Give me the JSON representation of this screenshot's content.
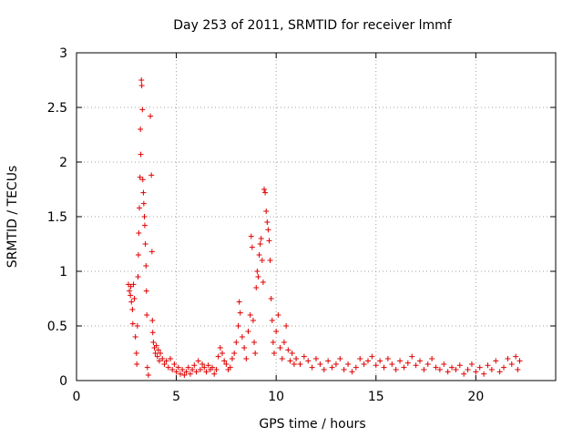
{
  "chart_data": {
    "type": "scatter",
    "title": "Day 253 of 2011, SRMTID for receiver lmmf",
    "xlabel": "GPS time / hours",
    "ylabel": "SRMTID / TECUs",
    "xlim": [
      0,
      24
    ],
    "ylim": [
      0,
      3
    ],
    "xticks": [
      0,
      5,
      10,
      15,
      20
    ],
    "xtick_labels": [
      "0",
      "5",
      "10",
      "15",
      "20"
    ],
    "yticks": [
      0,
      0.5,
      1,
      1.5,
      2,
      2.5,
      3
    ],
    "ytick_labels": [
      "0",
      "0.5",
      "1",
      "1.5",
      "2",
      "2.5",
      "3"
    ],
    "grid": true,
    "marker": "+",
    "color": "#e00000",
    "series": [
      {
        "name": "SRMTID",
        "points": [
          [
            2.6,
            0.88
          ],
          [
            2.65,
            0.82
          ],
          [
            2.7,
            0.78
          ],
          [
            2.72,
            0.86
          ],
          [
            2.75,
            0.72
          ],
          [
            2.8,
            0.65
          ],
          [
            2.82,
            0.52
          ],
          [
            2.85,
            0.88
          ],
          [
            2.9,
            0.75
          ],
          [
            2.95,
            0.4
          ],
          [
            3.0,
            0.25
          ],
          [
            3.02,
            0.15
          ],
          [
            3.05,
            0.5
          ],
          [
            3.08,
            0.95
          ],
          [
            3.1,
            1.15
          ],
          [
            3.12,
            1.35
          ],
          [
            3.15,
            1.58
          ],
          [
            3.18,
            1.86
          ],
          [
            3.2,
            2.3
          ],
          [
            3.22,
            2.07
          ],
          [
            3.25,
            2.75
          ],
          [
            3.27,
            2.7
          ],
          [
            3.3,
            2.48
          ],
          [
            3.32,
            1.84
          ],
          [
            3.35,
            1.72
          ],
          [
            3.37,
            1.62
          ],
          [
            3.4,
            1.5
          ],
          [
            3.42,
            1.42
          ],
          [
            3.45,
            1.25
          ],
          [
            3.48,
            1.05
          ],
          [
            3.5,
            0.82
          ],
          [
            3.52,
            0.6
          ],
          [
            3.55,
            0.12
          ],
          [
            3.6,
            0.05
          ],
          [
            3.7,
            2.42
          ],
          [
            3.75,
            1.88
          ],
          [
            3.78,
            1.18
          ],
          [
            3.8,
            0.55
          ],
          [
            3.82,
            0.44
          ],
          [
            3.85,
            0.35
          ],
          [
            3.9,
            0.3
          ],
          [
            3.95,
            0.25
          ],
          [
            4.0,
            0.32
          ],
          [
            4.05,
            0.22
          ],
          [
            4.1,
            0.28
          ],
          [
            4.15,
            0.18
          ],
          [
            4.2,
            0.25
          ],
          [
            4.3,
            0.2
          ],
          [
            4.4,
            0.15
          ],
          [
            4.5,
            0.18
          ],
          [
            4.6,
            0.12
          ],
          [
            4.7,
            0.2
          ],
          [
            4.8,
            0.1
          ],
          [
            4.9,
            0.15
          ],
          [
            5.0,
            0.08
          ],
          [
            5.1,
            0.12
          ],
          [
            5.2,
            0.06
          ],
          [
            5.3,
            0.1
          ],
          [
            5.4,
            0.05
          ],
          [
            5.5,
            0.08
          ],
          [
            5.6,
            0.12
          ],
          [
            5.7,
            0.06
          ],
          [
            5.8,
            0.1
          ],
          [
            5.9,
            0.14
          ],
          [
            6.0,
            0.08
          ],
          [
            6.1,
            0.18
          ],
          [
            6.2,
            0.1
          ],
          [
            6.3,
            0.15
          ],
          [
            6.4,
            0.12
          ],
          [
            6.5,
            0.08
          ],
          [
            6.6,
            0.14
          ],
          [
            6.7,
            0.1
          ],
          [
            6.8,
            0.12
          ],
          [
            6.9,
            0.06
          ],
          [
            7.0,
            0.1
          ],
          [
            7.1,
            0.22
          ],
          [
            7.2,
            0.3
          ],
          [
            7.3,
            0.25
          ],
          [
            7.4,
            0.18
          ],
          [
            7.5,
            0.15
          ],
          [
            7.6,
            0.1
          ],
          [
            7.7,
            0.12
          ],
          [
            7.8,
            0.2
          ],
          [
            7.9,
            0.25
          ],
          [
            8.0,
            0.35
          ],
          [
            8.1,
            0.5
          ],
          [
            8.15,
            0.72
          ],
          [
            8.2,
            0.62
          ],
          [
            8.3,
            0.4
          ],
          [
            8.4,
            0.3
          ],
          [
            8.5,
            0.2
          ],
          [
            8.6,
            0.45
          ],
          [
            8.7,
            0.6
          ],
          [
            8.75,
            1.32
          ],
          [
            8.8,
            1.22
          ],
          [
            8.85,
            0.55
          ],
          [
            8.9,
            0.35
          ],
          [
            8.95,
            0.25
          ],
          [
            9.0,
            0.85
          ],
          [
            9.05,
            1.0
          ],
          [
            9.1,
            0.95
          ],
          [
            9.15,
            1.15
          ],
          [
            9.2,
            1.25
          ],
          [
            9.25,
            1.3
          ],
          [
            9.3,
            1.1
          ],
          [
            9.35,
            0.9
          ],
          [
            9.4,
            1.75
          ],
          [
            9.45,
            1.72
          ],
          [
            9.5,
            1.55
          ],
          [
            9.55,
            1.45
          ],
          [
            9.6,
            1.38
          ],
          [
            9.65,
            1.28
          ],
          [
            9.7,
            1.1
          ],
          [
            9.75,
            0.75
          ],
          [
            9.8,
            0.55
          ],
          [
            9.85,
            0.35
          ],
          [
            9.9,
            0.25
          ],
          [
            10.0,
            0.45
          ],
          [
            10.1,
            0.6
          ],
          [
            10.2,
            0.3
          ],
          [
            10.3,
            0.2
          ],
          [
            10.4,
            0.35
          ],
          [
            10.5,
            0.5
          ],
          [
            10.6,
            0.28
          ],
          [
            10.7,
            0.18
          ],
          [
            10.8,
            0.25
          ],
          [
            10.9,
            0.15
          ],
          [
            11.0,
            0.2
          ],
          [
            11.2,
            0.15
          ],
          [
            11.4,
            0.22
          ],
          [
            11.6,
            0.18
          ],
          [
            11.8,
            0.12
          ],
          [
            12.0,
            0.2
          ],
          [
            12.2,
            0.15
          ],
          [
            12.4,
            0.1
          ],
          [
            12.6,
            0.18
          ],
          [
            12.8,
            0.12
          ],
          [
            13.0,
            0.15
          ],
          [
            13.2,
            0.2
          ],
          [
            13.4,
            0.1
          ],
          [
            13.6,
            0.15
          ],
          [
            13.8,
            0.08
          ],
          [
            14.0,
            0.12
          ],
          [
            14.2,
            0.2
          ],
          [
            14.4,
            0.15
          ],
          [
            14.6,
            0.18
          ],
          [
            14.8,
            0.22
          ],
          [
            15.0,
            0.14
          ],
          [
            15.2,
            0.18
          ],
          [
            15.4,
            0.12
          ],
          [
            15.6,
            0.2
          ],
          [
            15.8,
            0.15
          ],
          [
            16.0,
            0.1
          ],
          [
            16.2,
            0.18
          ],
          [
            16.4,
            0.12
          ],
          [
            16.6,
            0.16
          ],
          [
            16.8,
            0.22
          ],
          [
            17.0,
            0.14
          ],
          [
            17.2,
            0.18
          ],
          [
            17.4,
            0.1
          ],
          [
            17.6,
            0.15
          ],
          [
            17.8,
            0.2
          ],
          [
            18.0,
            0.12
          ],
          [
            18.2,
            0.1
          ],
          [
            18.4,
            0.15
          ],
          [
            18.6,
            0.08
          ],
          [
            18.8,
            0.12
          ],
          [
            19.0,
            0.1
          ],
          [
            19.2,
            0.14
          ],
          [
            19.4,
            0.06
          ],
          [
            19.6,
            0.1
          ],
          [
            19.8,
            0.15
          ],
          [
            20.0,
            0.08
          ],
          [
            20.2,
            0.12
          ],
          [
            20.4,
            0.06
          ],
          [
            20.6,
            0.14
          ],
          [
            20.8,
            0.1
          ],
          [
            21.0,
            0.18
          ],
          [
            21.2,
            0.08
          ],
          [
            21.4,
            0.12
          ],
          [
            21.6,
            0.2
          ],
          [
            21.8,
            0.15
          ],
          [
            22.0,
            0.22
          ],
          [
            22.1,
            0.1
          ],
          [
            22.2,
            0.18
          ]
        ]
      }
    ]
  }
}
